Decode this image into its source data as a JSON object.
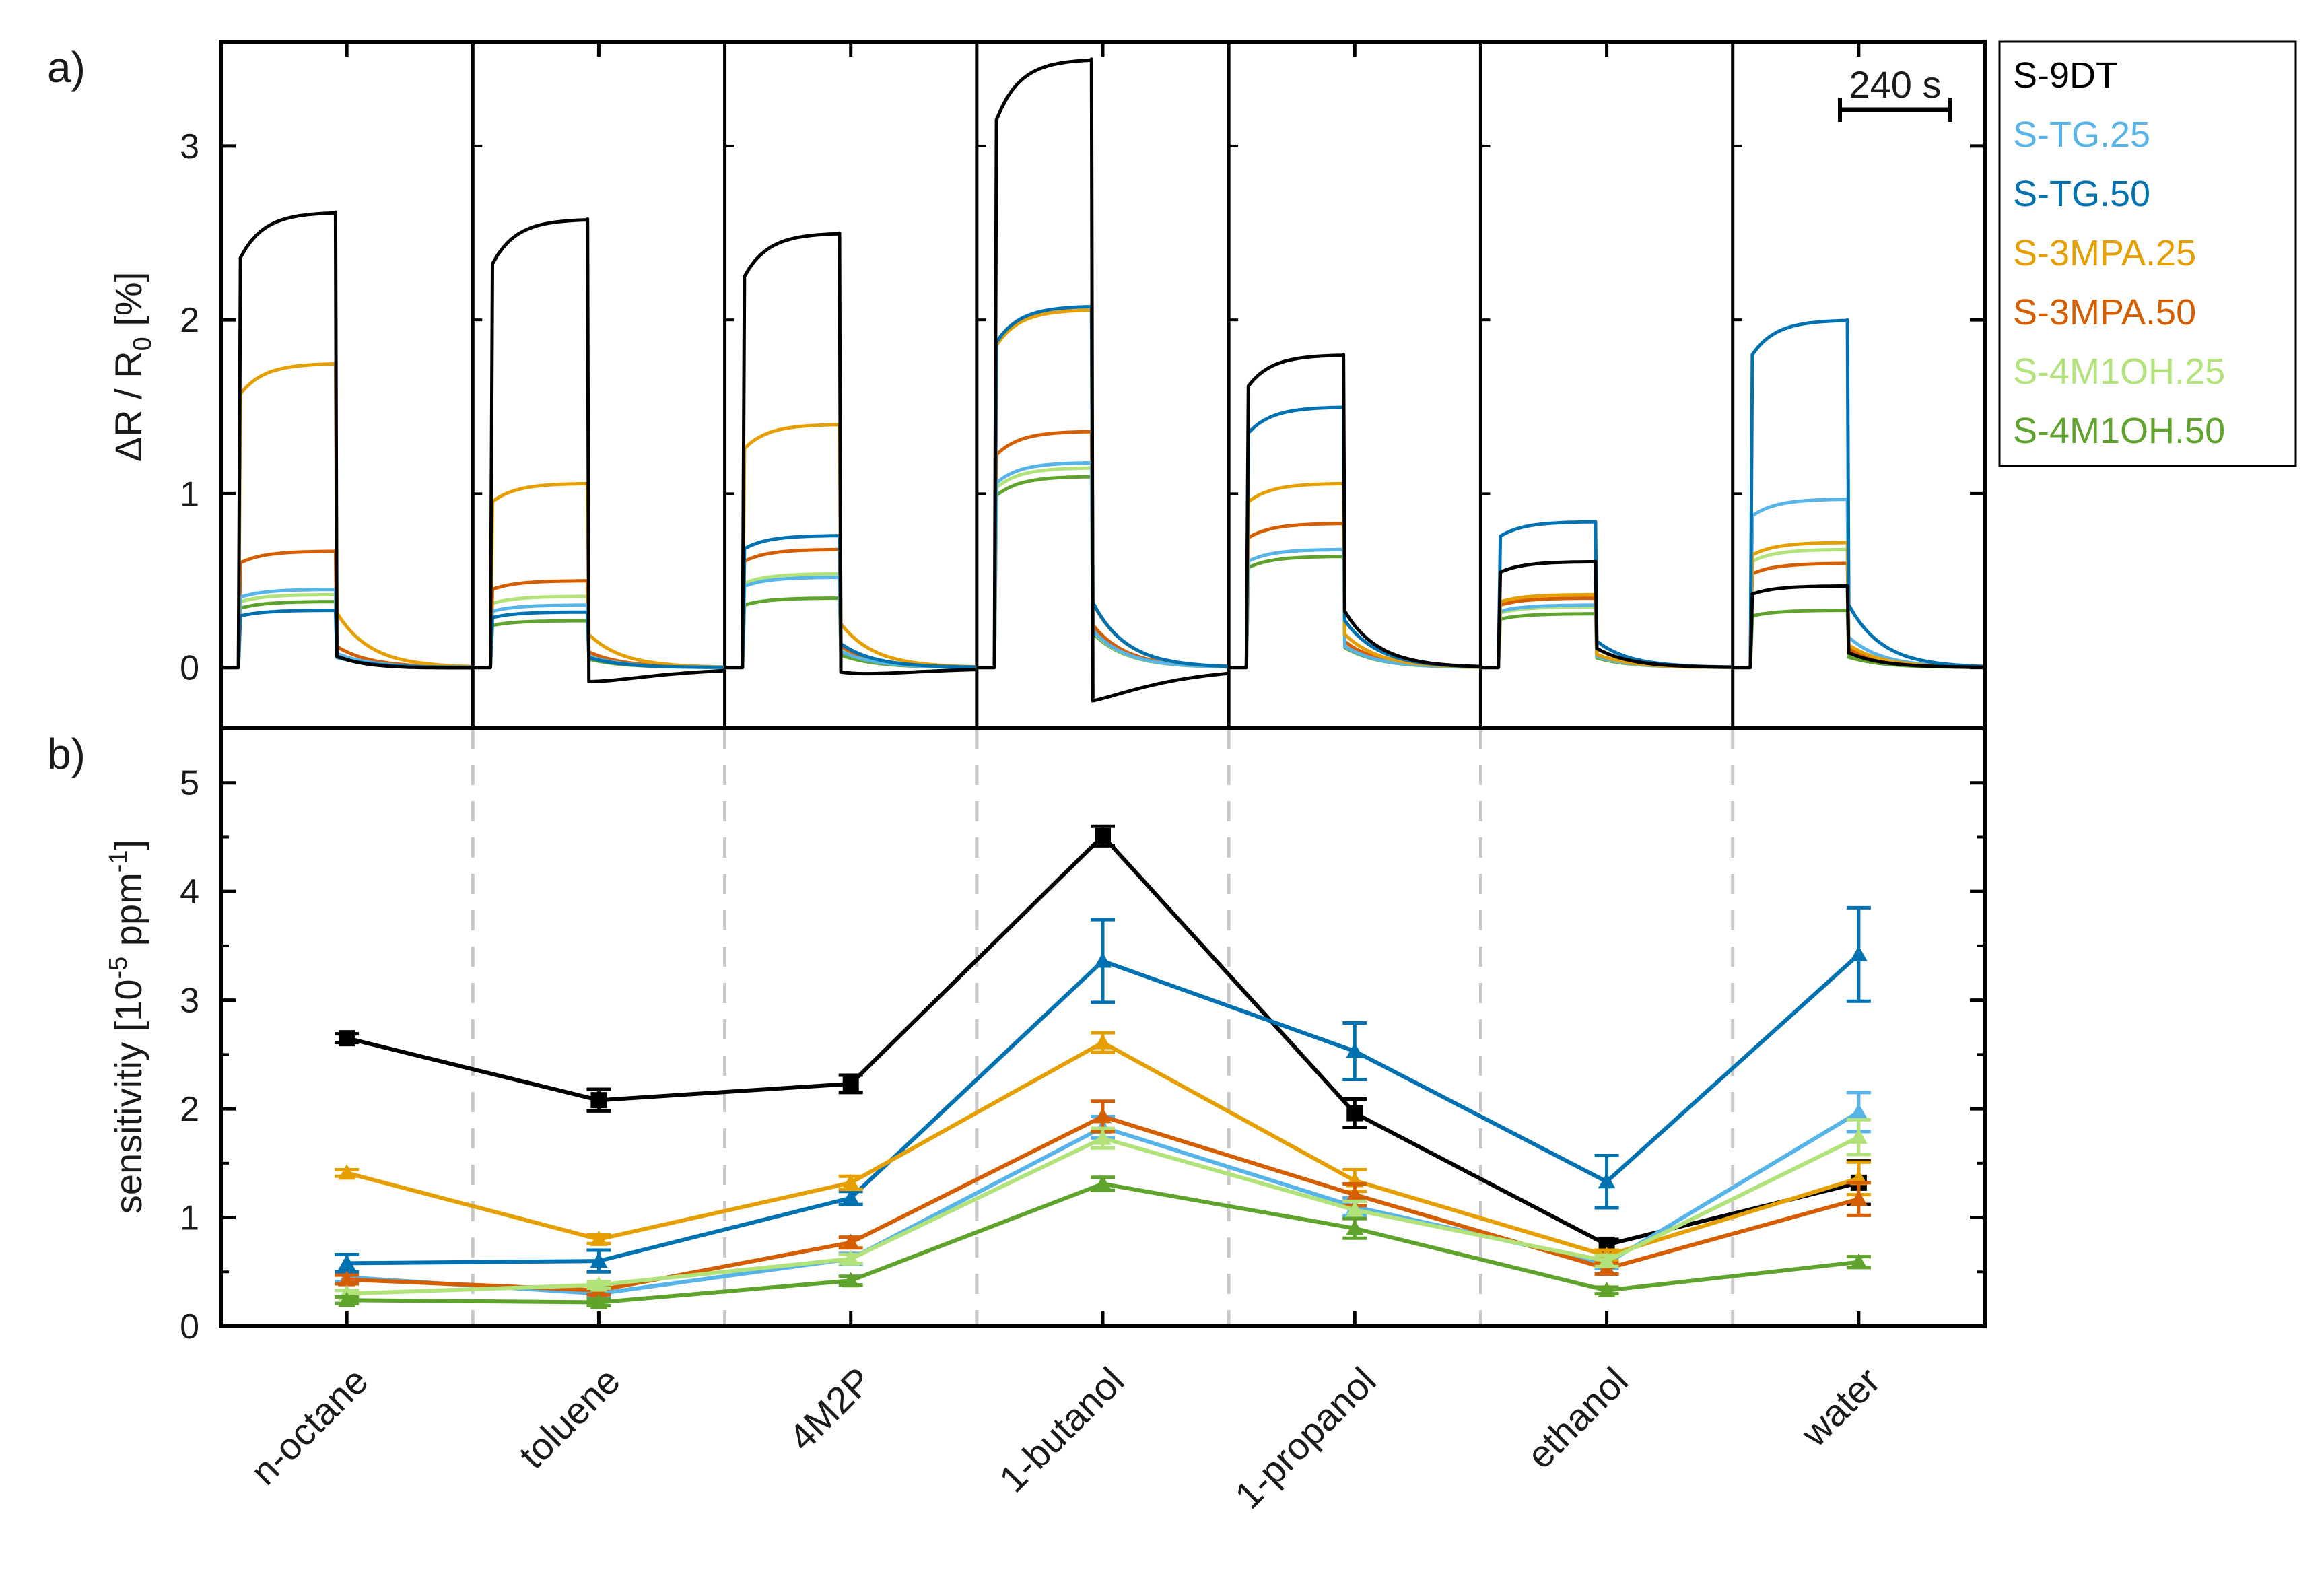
{
  "figure": {
    "panel_a_label": "a)",
    "panel_b_label": "b)",
    "scale_bar_label": "240 s"
  },
  "legend": [
    {
      "name": "S-9DT",
      "color": "#000000"
    },
    {
      "name": "S-TG.25",
      "color": "#56b4e9"
    },
    {
      "name": "S-TG.50",
      "color": "#0072b2"
    },
    {
      "name": "S-3MPA.25",
      "color": "#e69f00"
    },
    {
      "name": "S-3MPA.50",
      "color": "#d55e00"
    },
    {
      "name": "S-4M1OH.25",
      "color": "#b2e27a"
    },
    {
      "name": "S-4M1OH.50",
      "color": "#5ea32b"
    }
  ],
  "chart_data": [
    {
      "type": "line",
      "panel": "a)",
      "title": "",
      "ylabel": "ΔR / R0 [%]",
      "ylabel_main": "ΔR / R",
      "ylabel_sub": "0",
      "ylabel_tail": " [%]",
      "ylim": [
        -0.35,
        3.6
      ],
      "yticks": [
        0,
        1,
        2,
        3
      ],
      "analytes": [
        "n-octane",
        "toluene",
        "4M2P",
        "1-butanol",
        "1-propanol",
        "ethanol",
        "water"
      ],
      "note": "Transient responses: plateau response during analyte exposure (approximate, in %)",
      "series": [
        {
          "name": "S-9DT",
          "plateau": [
            2.62,
            2.58,
            2.5,
            3.5,
            1.8,
            0.61,
            0.47
          ],
          "undershoot": [
            -0.03,
            -0.18,
            -0.12,
            -0.33,
            0,
            0,
            0
          ]
        },
        {
          "name": "S-TG.25",
          "plateau": [
            0.45,
            0.36,
            0.52,
            1.18,
            0.68,
            0.36,
            0.97
          ],
          "undershoot": [
            0,
            0,
            0,
            0,
            0,
            0,
            0
          ]
        },
        {
          "name": "S-TG.50",
          "plateau": [
            0.33,
            0.32,
            0.76,
            2.08,
            1.5,
            0.84,
            2.0
          ],
          "undershoot": [
            0,
            0,
            0,
            0,
            0,
            0,
            0
          ]
        },
        {
          "name": "S-3MPA.25",
          "plateau": [
            1.75,
            1.06,
            1.4,
            2.06,
            1.06,
            0.42,
            0.72
          ],
          "undershoot": [
            0,
            0,
            0,
            0,
            0,
            0,
            0
          ]
        },
        {
          "name": "S-3MPA.50",
          "plateau": [
            0.67,
            0.5,
            0.68,
            1.36,
            0.83,
            0.4,
            0.6
          ],
          "undershoot": [
            0,
            0,
            0,
            0,
            0,
            0,
            0
          ]
        },
        {
          "name": "S-4M1OH.25",
          "plateau": [
            0.42,
            0.41,
            0.54,
            1.15,
            0.68,
            0.35,
            0.68
          ],
          "undershoot": [
            0,
            0,
            0,
            0,
            0,
            0,
            0
          ]
        },
        {
          "name": "S-4M1OH.50",
          "plateau": [
            0.38,
            0.27,
            0.4,
            1.1,
            0.64,
            0.31,
            0.33
          ],
          "undershoot": [
            0,
            0,
            0,
            0,
            0,
            0,
            0
          ]
        }
      ]
    },
    {
      "type": "line",
      "panel": "b)",
      "title": "",
      "ylabel": "sensitivitiy [10-5 ppm-1]",
      "ylabel_main": "sensitivitiy [10",
      "ylabel_sup1": "-5",
      "ylabel_mid": " ppm",
      "ylabel_sup2": "-1",
      "ylabel_tail": "]",
      "xlabel": "",
      "ylim": [
        0,
        5.5
      ],
      "yticks": [
        0,
        1,
        2,
        3,
        4,
        5
      ],
      "categories": [
        "n-octane",
        "toluene",
        "4M2P",
        "1-butanol",
        "1-propanol",
        "ethanol",
        "water"
      ],
      "series": [
        {
          "name": "S-9DT",
          "values": [
            2.65,
            2.08,
            2.23,
            4.51,
            1.96,
            0.75,
            1.32
          ],
          "errors": [
            0.04,
            0.1,
            0.08,
            0.09,
            0.13,
            0.05,
            0.2
          ]
        },
        {
          "name": "S-TG.25",
          "values": [
            0.45,
            0.3,
            0.62,
            1.83,
            1.1,
            0.58,
            1.97
          ],
          "errors": [
            0.04,
            0.04,
            0.05,
            0.1,
            0.08,
            0.05,
            0.18
          ]
        },
        {
          "name": "S-TG.50",
          "values": [
            0.58,
            0.6,
            1.18,
            3.36,
            2.53,
            1.33,
            3.42
          ],
          "errors": [
            0.08,
            0.1,
            0.06,
            0.38,
            0.26,
            0.24,
            0.43
          ]
        },
        {
          "name": "S-3MPA.25",
          "values": [
            1.41,
            0.8,
            1.32,
            2.61,
            1.34,
            0.65,
            1.36
          ],
          "errors": [
            0.03,
            0.04,
            0.06,
            0.09,
            0.1,
            0.05,
            0.15
          ]
        },
        {
          "name": "S-3MPA.50",
          "values": [
            0.43,
            0.33,
            0.77,
            1.93,
            1.21,
            0.53,
            1.17
          ],
          "errors": [
            0.04,
            0.04,
            0.05,
            0.14,
            0.1,
            0.05,
            0.15
          ]
        },
        {
          "name": "S-4M1OH.25",
          "values": [
            0.3,
            0.38,
            0.62,
            1.73,
            1.07,
            0.6,
            1.74
          ],
          "errors": [
            0.03,
            0.03,
            0.04,
            0.09,
            0.08,
            0.05,
            0.16
          ]
        },
        {
          "name": "S-4M1OH.50",
          "values": [
            0.24,
            0.22,
            0.42,
            1.31,
            0.9,
            0.33,
            0.59
          ],
          "errors": [
            0.03,
            0.03,
            0.04,
            0.06,
            0.09,
            0.03,
            0.05
          ]
        }
      ]
    }
  ]
}
